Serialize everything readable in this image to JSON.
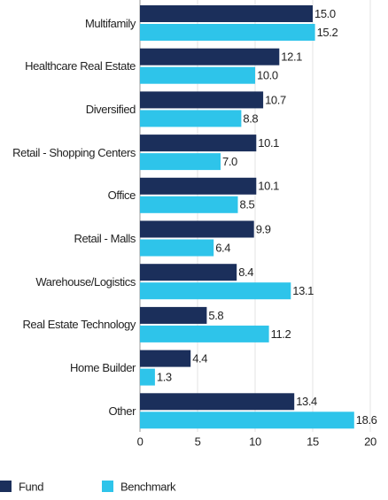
{
  "chart_data": {
    "type": "bar",
    "orientation": "horizontal",
    "categories": [
      "Multifamily",
      "Healthcare Real Estate",
      "Diversified",
      "Retail - Shopping Centers",
      "Office",
      "Retail - Malls",
      "Warehouse/Logistics",
      "Real Estate Technology",
      "Home Builder",
      "Other"
    ],
    "series": [
      {
        "name": "Fund",
        "color": "#1b2f5b",
        "values": [
          15.0,
          12.1,
          10.7,
          10.1,
          10.1,
          9.9,
          8.4,
          5.8,
          4.4,
          13.4
        ],
        "value_labels": [
          "15.0",
          "12.1",
          "10.7",
          "10.1",
          "10.1",
          "9.9",
          "8.4",
          "5.8",
          "4.4",
          "13.4"
        ]
      },
      {
        "name": "Benchmark",
        "color": "#2ec4ea",
        "values": [
          15.2,
          10.0,
          8.8,
          7.0,
          8.5,
          6.4,
          13.1,
          11.2,
          1.3,
          18.6
        ],
        "value_labels": [
          "15.2",
          "10.0",
          "8.8",
          "7.0",
          "8.5",
          "6.4",
          "13.1",
          "11.2",
          "1.3",
          "18.6"
        ]
      }
    ],
    "xlim": [
      0,
      20
    ],
    "xticks": [
      0,
      5,
      10,
      15,
      20
    ],
    "grid": true
  }
}
